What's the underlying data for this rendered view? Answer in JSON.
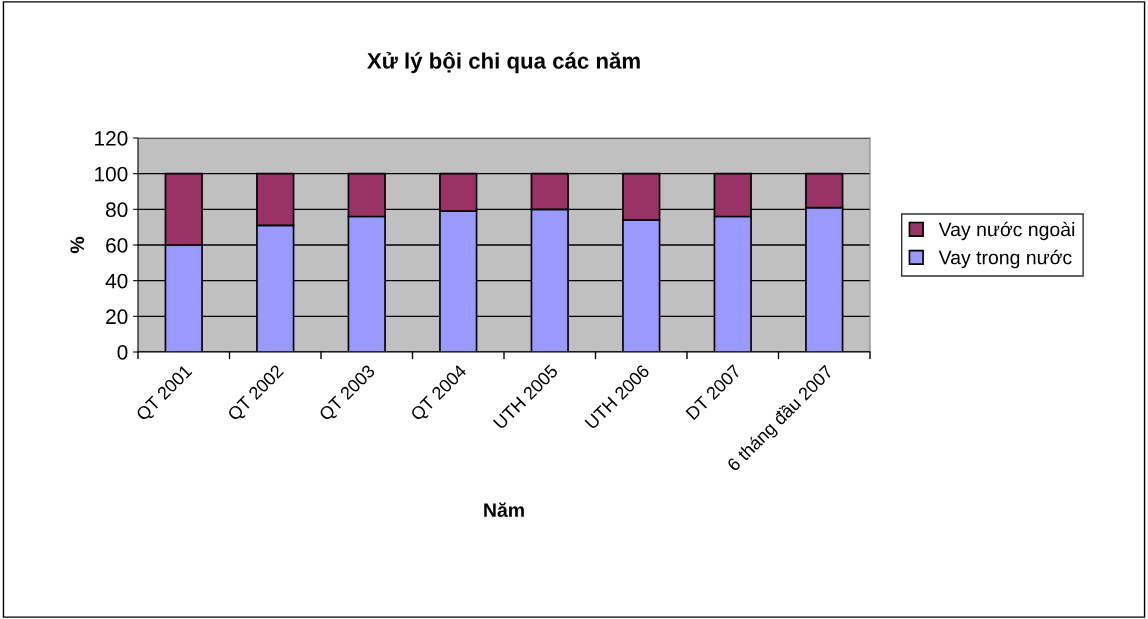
{
  "chart_data": {
    "type": "bar",
    "stacked": true,
    "title": "Xử lý bội chi qua các năm",
    "xlabel": "Năm",
    "ylabel": "%",
    "categories": [
      "QT 2001",
      "QT 2002",
      "QT 2003",
      "QT 2004",
      "UTH 2005",
      "UTH 2006",
      "DT 2007",
      "6 tháng đầu 2007"
    ],
    "series": [
      {
        "name": "Vay trong nước",
        "color": "#9999ff",
        "values": [
          60,
          71,
          76,
          79,
          80,
          74,
          76,
          81
        ]
      },
      {
        "name": "Vay nước ngoài",
        "color": "#993366",
        "values": [
          40,
          29,
          24,
          21,
          20,
          26,
          24,
          19
        ]
      }
    ],
    "ylim": [
      0,
      120
    ],
    "yticks": [
      0,
      20,
      40,
      60,
      80,
      100,
      120
    ],
    "grid": "y",
    "legend": "right"
  }
}
